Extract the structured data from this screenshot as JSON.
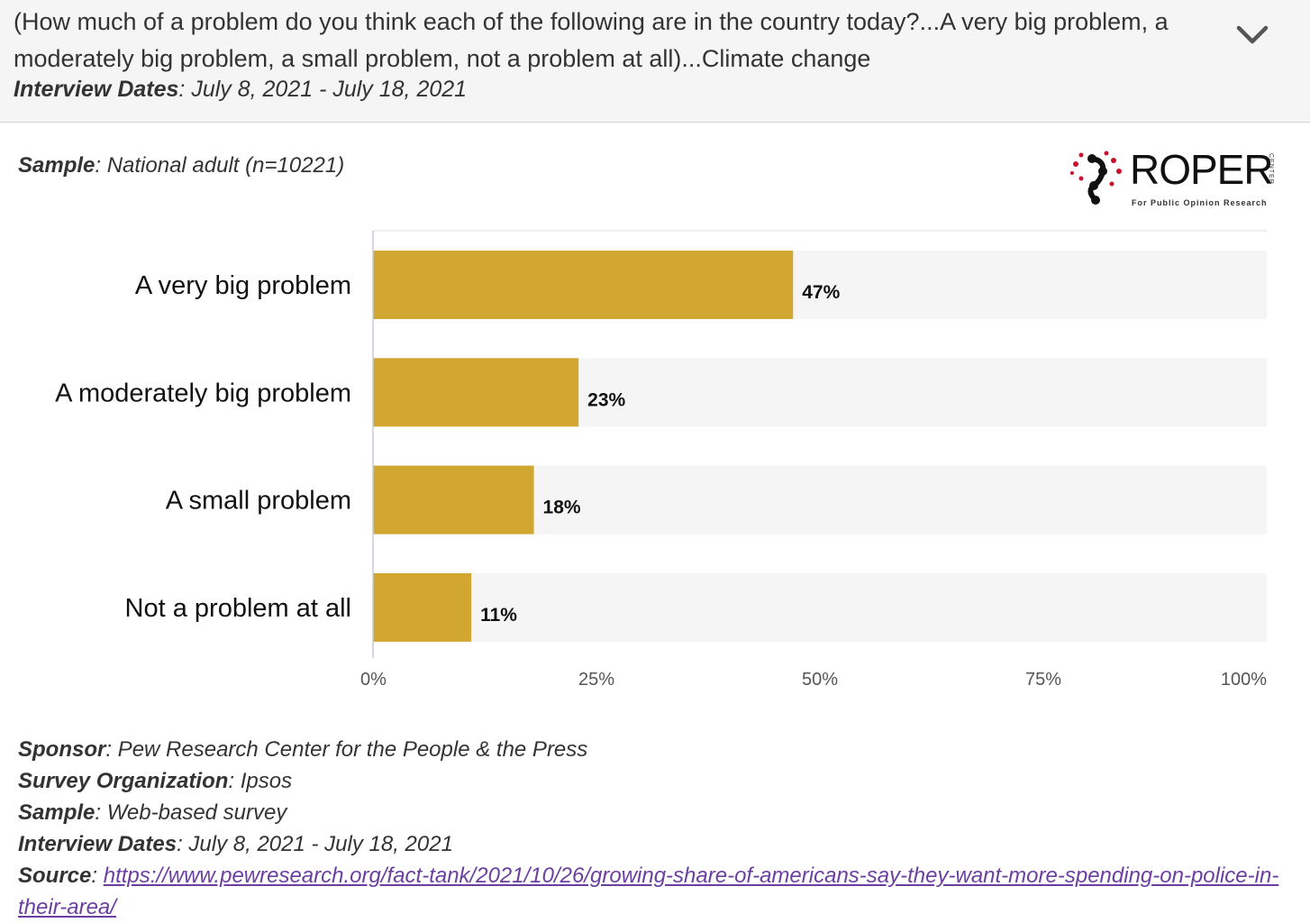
{
  "header": {
    "question": "(How much of a problem do you think each of the following are in the country today?...A very big problem, a moderately big problem, a small problem, not a problem at all)...Climate change",
    "interview_dates_label": "Interview Dates",
    "interview_dates_value": ": July 8, 2021 - July 18, 2021",
    "toggle_icon": "chevron-down-icon"
  },
  "sample_top": {
    "label": "Sample",
    "value": ": National adult (n=10221)"
  },
  "logo": {
    "word": "ROPER",
    "vertical": "CENTER",
    "subtitle": "For Public Opinion Research"
  },
  "chart_data": {
    "type": "bar",
    "orientation": "horizontal",
    "categories": [
      "A very big problem",
      "A moderately big problem",
      "A small problem",
      "Not a problem at all"
    ],
    "values": [
      47,
      23,
      18,
      11
    ],
    "data_labels": [
      "47%",
      "23%",
      "18%",
      "11%"
    ],
    "xlim": [
      0,
      100
    ],
    "xticks": [
      0,
      25,
      50,
      75,
      100
    ],
    "xtick_labels": [
      "0%",
      "25%",
      "50%",
      "75%",
      "100%"
    ],
    "bar_color": "#d1a631",
    "track_color": "#f5f5f5",
    "grid": false,
    "legend": "none"
  },
  "footer": {
    "sponsor_label": "Sponsor",
    "sponsor_value": ": Pew Research Center for the People & the Press",
    "org_label": "Survey Organization",
    "org_value": ": Ipsos",
    "sample_label": "Sample",
    "sample_value": ": Web-based survey",
    "dates_label": "Interview Dates",
    "dates_value": ": July 8, 2021 - July 18, 2021",
    "source_label": "Source",
    "source_sep": ": ",
    "source_url": "https://www.pewresearch.org/fact-tank/2021/10/26/growing-share-of-americans-say-they-want-more-spending-on-police-in-their-area/"
  }
}
